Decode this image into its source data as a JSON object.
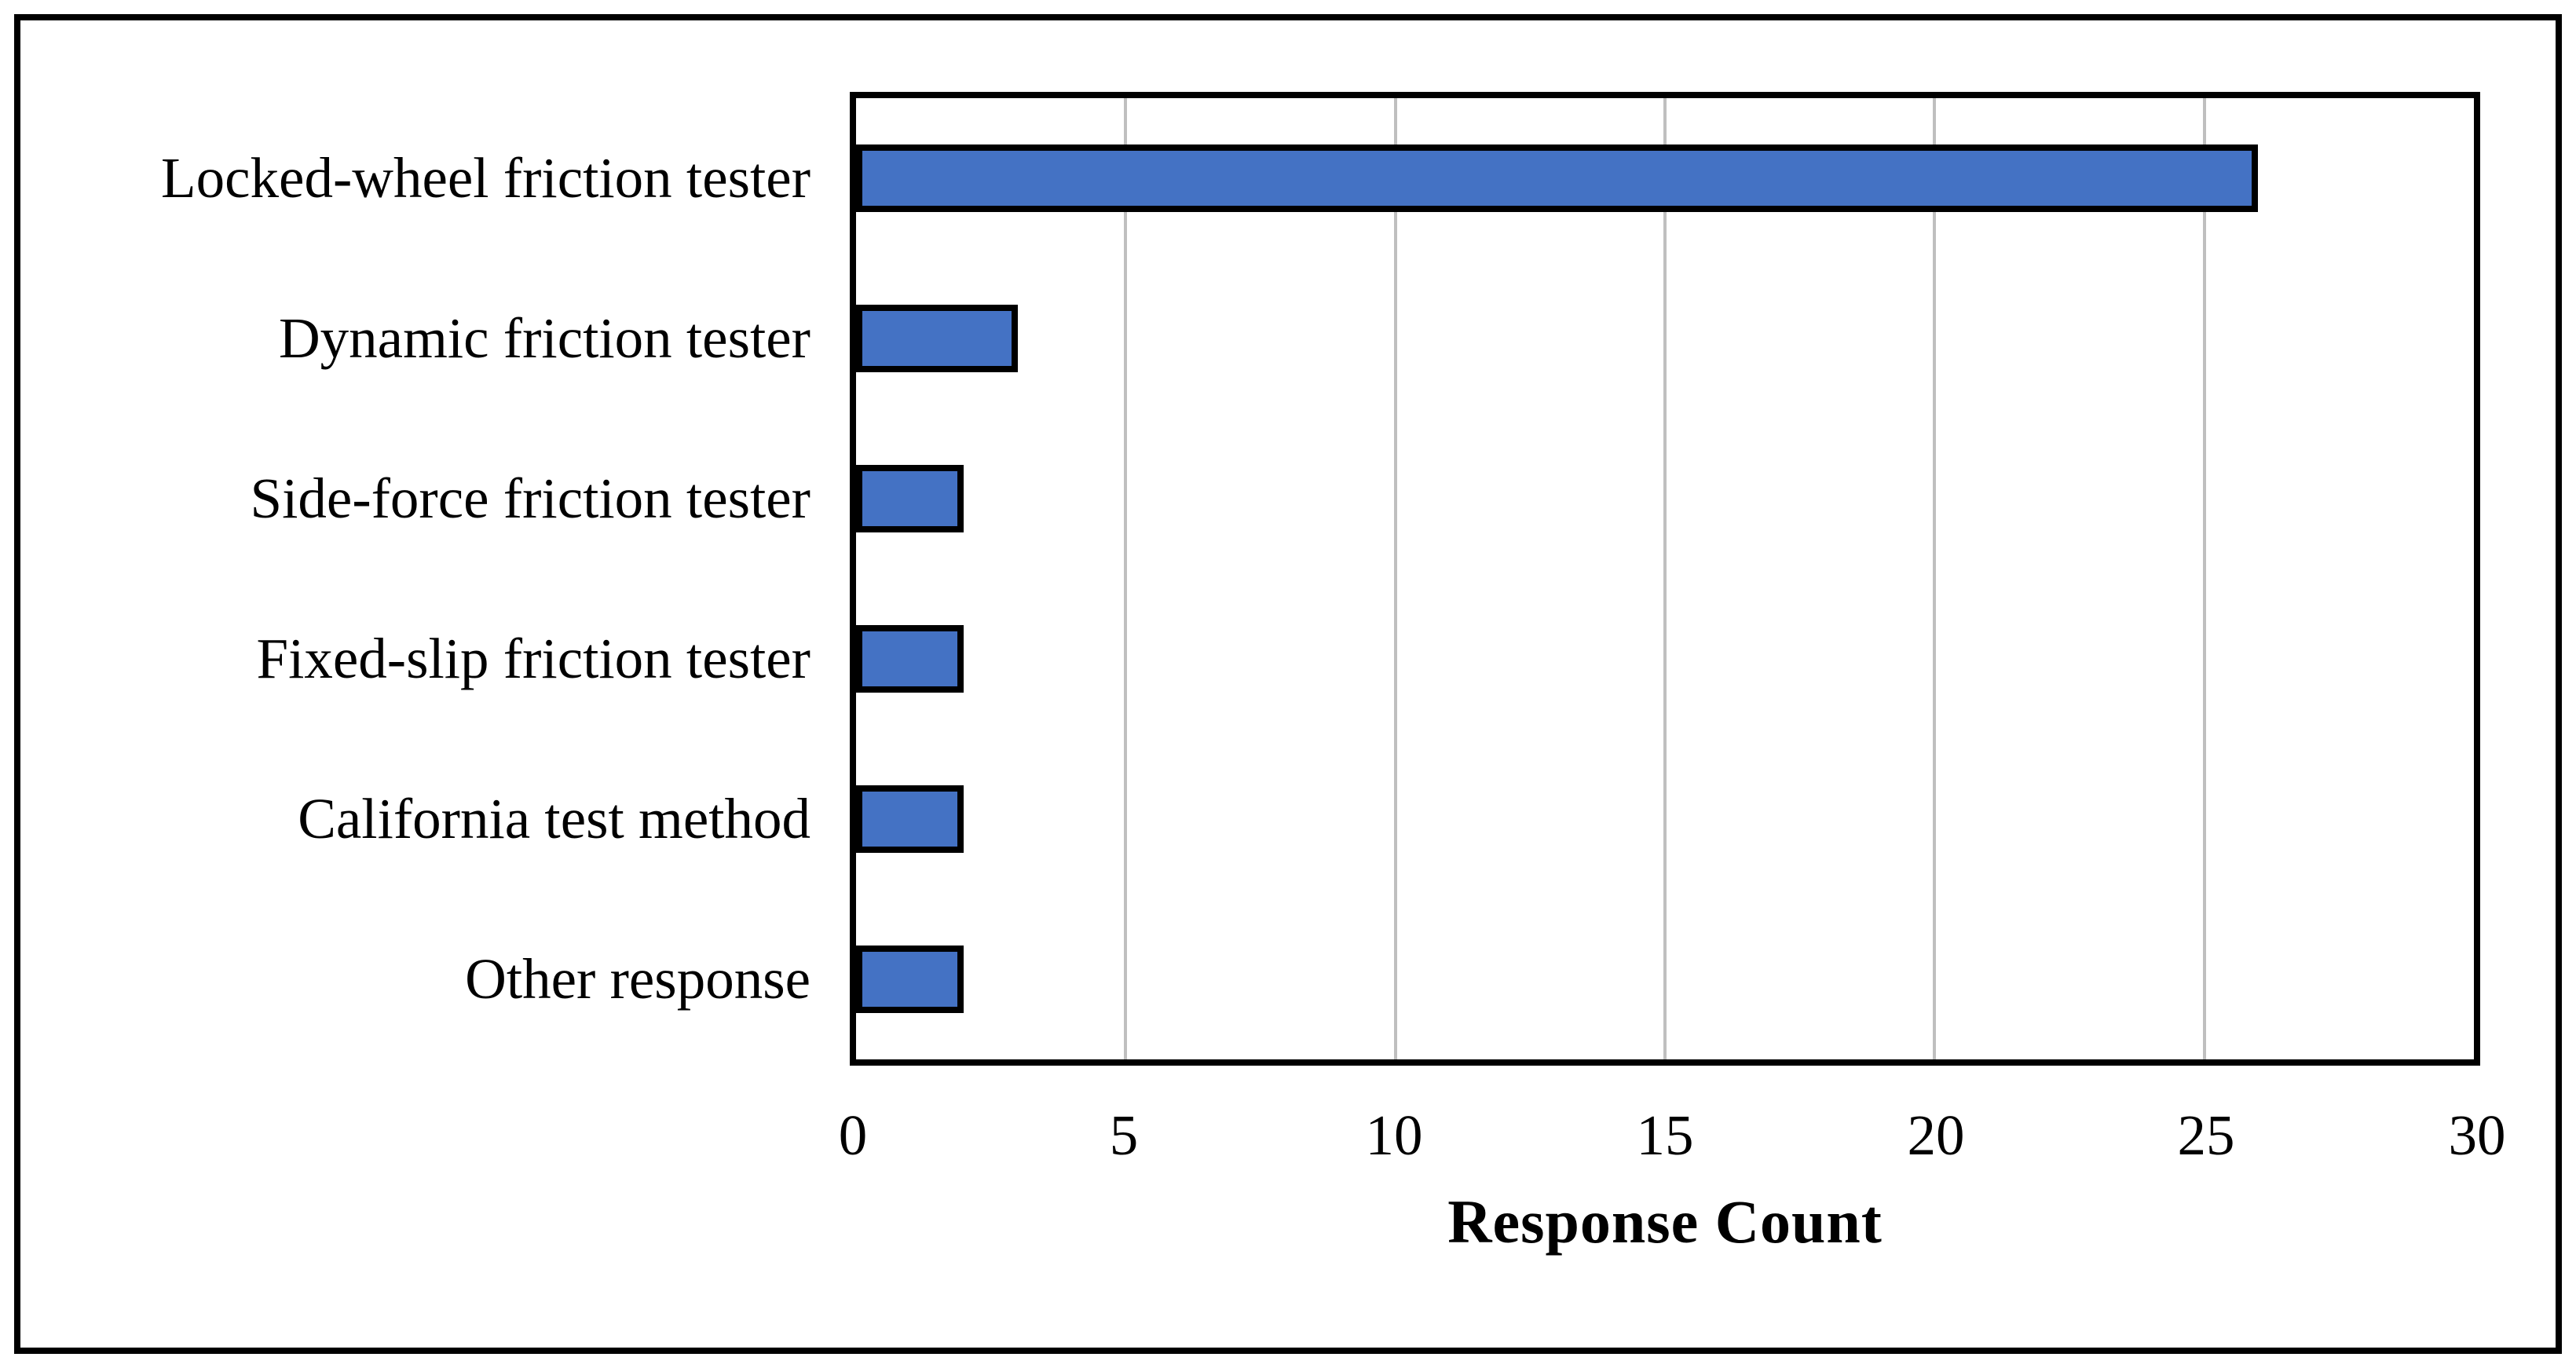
{
  "figure": {
    "background_color": "#ffffff",
    "frame_color": "#000000"
  },
  "chart_data": {
    "type": "bar",
    "orientation": "horizontal",
    "title": "",
    "xlabel": "Response Count",
    "ylabel": "",
    "categories": [
      "Locked-wheel friction tester",
      "Dynamic friction tester",
      "Side-force friction tester",
      "Fixed-slip friction tester",
      "California test method",
      "Other response"
    ],
    "values": [
      26,
      3,
      2,
      2,
      2,
      2
    ],
    "xlim": [
      0,
      30
    ],
    "xticks": [
      0,
      5,
      10,
      15,
      20,
      25,
      30
    ],
    "grid": "vertical-major",
    "legend_position": "none",
    "bar_fill_color": "#4472C4",
    "bar_border_color": "#000000",
    "gridline_color": "#BFBFBF",
    "axis_line_color": "#000000",
    "label_text_color": "#000000"
  }
}
